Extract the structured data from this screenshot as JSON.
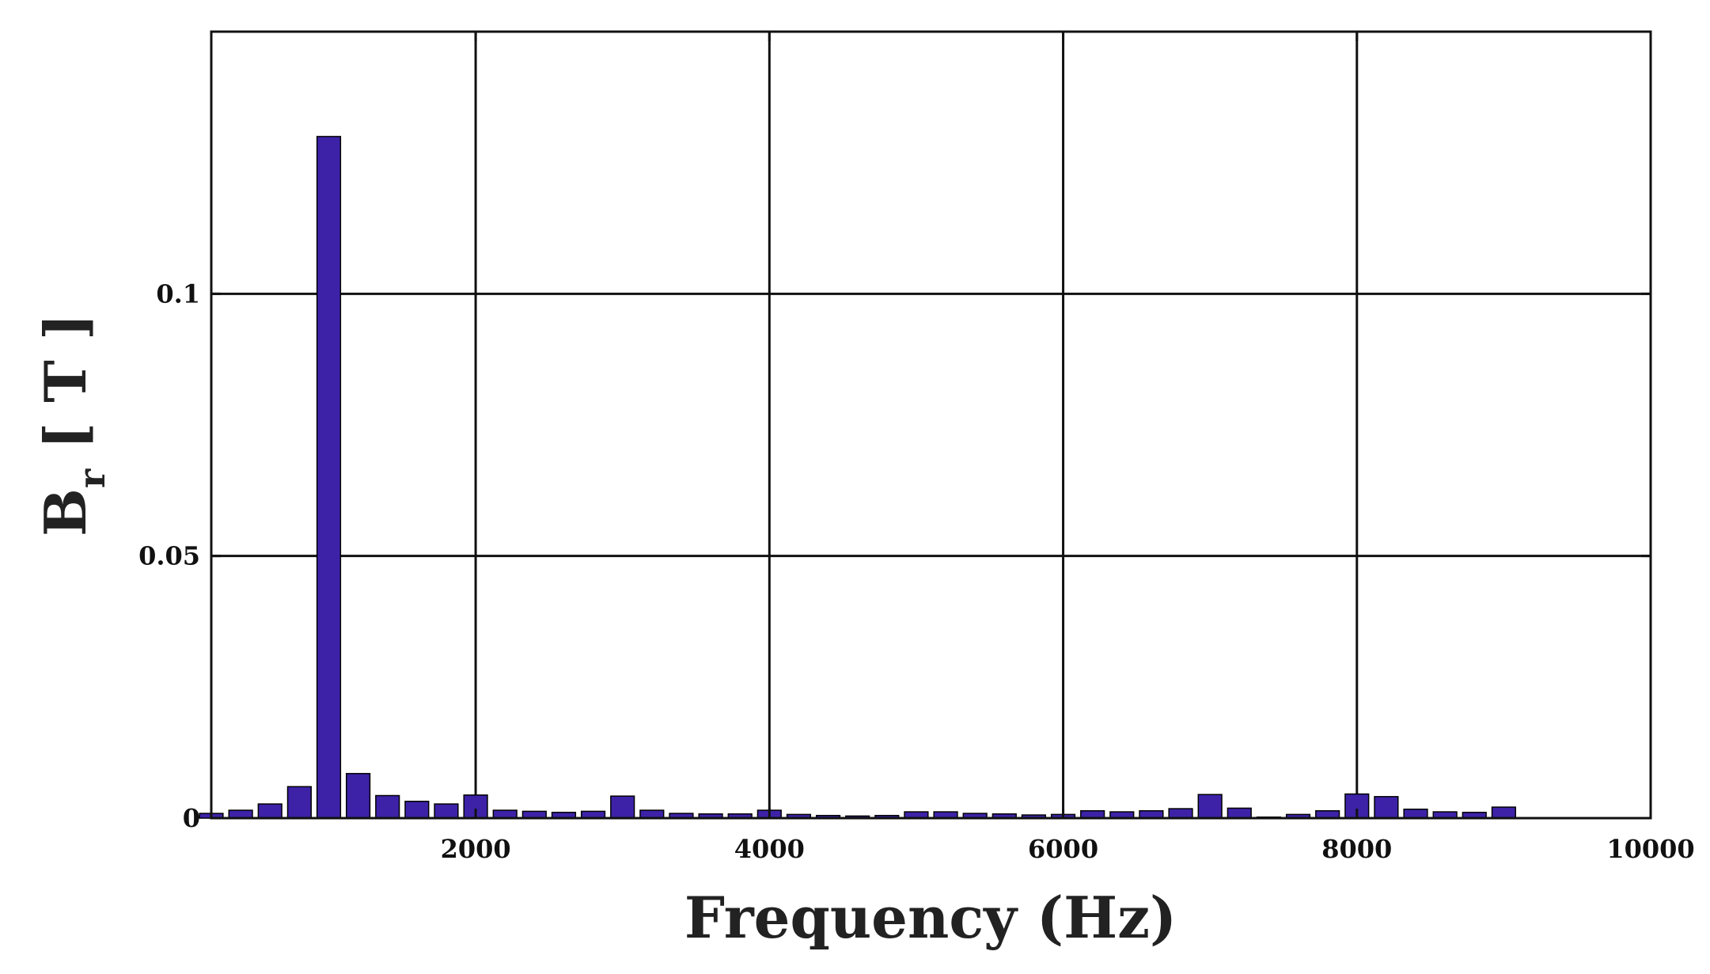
{
  "chart_data": {
    "type": "bar",
    "title": "",
    "xlabel": "Frequency (Hz)",
    "ylabel": {
      "main": "B",
      "subscript": "r",
      "unit": " [ T ]"
    },
    "xlim": [
      200,
      10000
    ],
    "ylim": [
      0,
      0.15
    ],
    "xticks": [
      2000,
      4000,
      6000,
      8000,
      10000
    ],
    "xtick_labels": [
      "2000",
      "4000",
      "6000",
      "8000",
      "10000"
    ],
    "yticks": [
      0,
      0.05,
      0.1
    ],
    "ytick_labels": [
      "0",
      "0.05",
      "0.1"
    ],
    "grid": true,
    "bar_color": "#3d22a8",
    "bar_width_hz": 160,
    "x": [
      200,
      400,
      600,
      800,
      1000,
      1200,
      1400,
      1600,
      1800,
      2000,
      2200,
      2400,
      2600,
      2800,
      3000,
      3200,
      3400,
      3600,
      3800,
      4000,
      4200,
      4400,
      4600,
      4800,
      5000,
      5200,
      5400,
      5600,
      5800,
      6000,
      6200,
      6400,
      6600,
      6800,
      7000,
      7200,
      7400,
      7600,
      7800,
      8000,
      8200,
      8400,
      8600,
      8800,
      9000
    ],
    "values": [
      0.0009,
      0.0015,
      0.0027,
      0.006,
      0.13,
      0.0085,
      0.0043,
      0.0032,
      0.0027,
      0.0044,
      0.0015,
      0.0013,
      0.0011,
      0.0013,
      0.0042,
      0.0015,
      0.0009,
      0.0008,
      0.0008,
      0.0015,
      0.0007,
      0.0005,
      0.0004,
      0.0005,
      0.0012,
      0.0012,
      0.0009,
      0.0008,
      0.0006,
      0.0007,
      0.0014,
      0.0012,
      0.0014,
      0.0018,
      0.0045,
      0.0019,
      0.0002,
      0.0007,
      0.0014,
      0.0046,
      0.0041,
      0.0017,
      0.0012,
      0.0011,
      0.0021
    ]
  }
}
